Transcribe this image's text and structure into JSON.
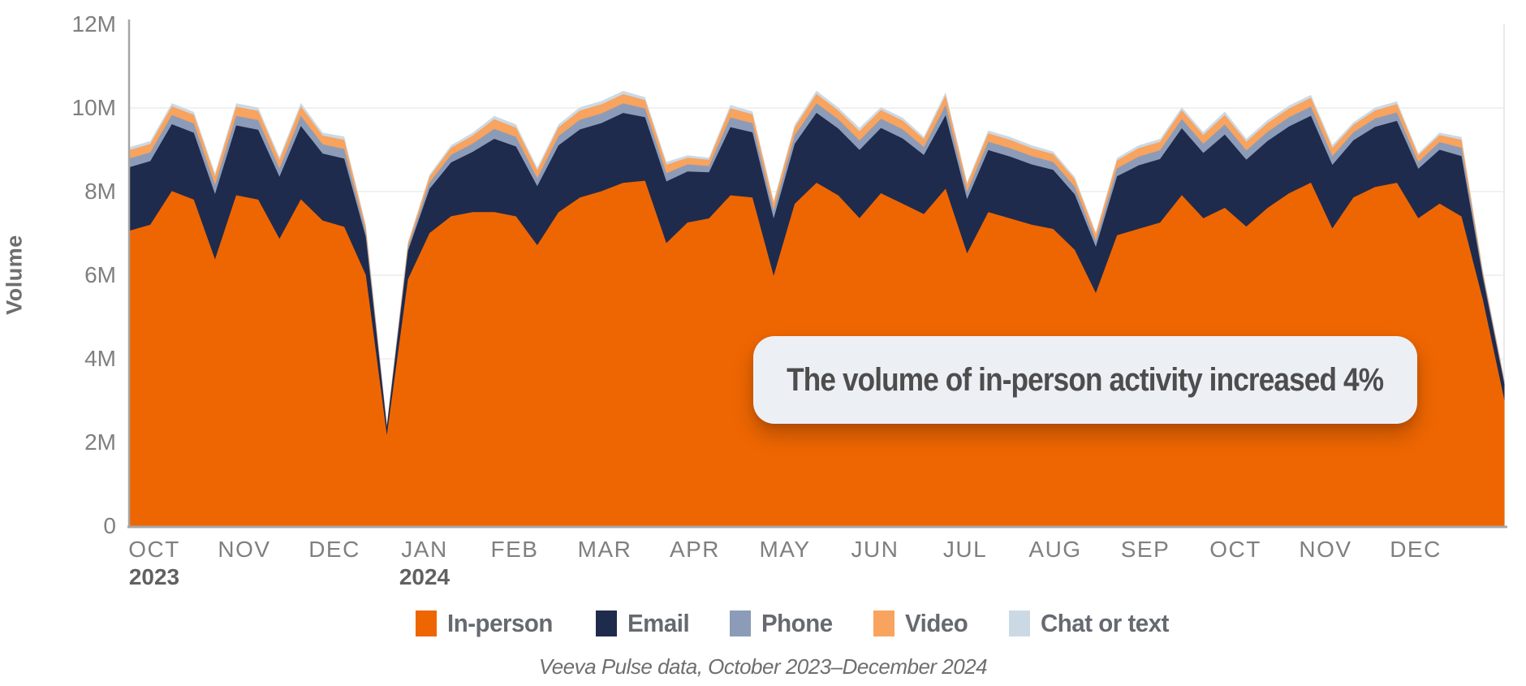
{
  "caption": "Veeva Pulse data, October 2023–December 2024",
  "annotation": {
    "text": "The volume of in-person activity increased 4%"
  },
  "chart_data": {
    "type": "area",
    "stacked": true,
    "ylabel": "Volume",
    "unit": "millions",
    "frequency": "weekly",
    "ylim": [
      0,
      12
    ],
    "grid": "horizontal",
    "legend_position": "bottom",
    "y_ticks": [
      {
        "value": 0,
        "label": "0"
      },
      {
        "value": 2,
        "label": "2M"
      },
      {
        "value": 4,
        "label": "4M"
      },
      {
        "value": 6,
        "label": "6M"
      },
      {
        "value": 8,
        "label": "8M"
      },
      {
        "value": 10,
        "label": "10M"
      },
      {
        "value": 12,
        "label": "12M"
      }
    ],
    "x_tick_labels": [
      {
        "month": "OCT",
        "year": "2023"
      },
      {
        "month": "NOV"
      },
      {
        "month": "DEC"
      },
      {
        "month": "JAN",
        "year": "2024"
      },
      {
        "month": "FEB"
      },
      {
        "month": "MAR"
      },
      {
        "month": "APR"
      },
      {
        "month": "MAY"
      },
      {
        "month": "JUN"
      },
      {
        "month": "JUL"
      },
      {
        "month": "AUG"
      },
      {
        "month": "SEP"
      },
      {
        "month": "OCT"
      },
      {
        "month": "NOV"
      },
      {
        "month": "DEC"
      }
    ],
    "series": [
      {
        "name": "In-person",
        "color": "#EE6602",
        "values": [
          7.05,
          7.2,
          8.0,
          7.8,
          6.35,
          7.9,
          7.8,
          6.85,
          7.8,
          7.3,
          7.15,
          6.0,
          2.1,
          5.9,
          7.0,
          7.4,
          7.5,
          7.5,
          7.4,
          6.7,
          7.5,
          7.85,
          8.0,
          8.2,
          8.25,
          6.75,
          7.25,
          7.35,
          7.9,
          7.85,
          5.95,
          7.7,
          8.2,
          7.9,
          7.35,
          7.95,
          7.7,
          7.45,
          8.05,
          6.5,
          7.5,
          7.35,
          7.2,
          7.1,
          6.6,
          5.55,
          6.95,
          7.1,
          7.25,
          7.9,
          7.35,
          7.6,
          7.15,
          7.6,
          7.95,
          8.2,
          7.1,
          7.85,
          8.1,
          8.2,
          7.35,
          7.7,
          7.4,
          5.4,
          3.0
        ]
      },
      {
        "name": "Email",
        "color": "#1F2B4D",
        "values": [
          1.52,
          1.52,
          1.6,
          1.6,
          1.56,
          1.67,
          1.67,
          1.48,
          1.75,
          1.6,
          1.63,
          0.91,
          0.19,
          0.68,
          1.06,
          1.29,
          1.44,
          1.75,
          1.67,
          1.41,
          1.6,
          1.63,
          1.63,
          1.67,
          1.52,
          1.48,
          1.22,
          1.1,
          1.63,
          1.56,
          1.37,
          1.44,
          1.67,
          1.6,
          1.63,
          1.56,
          1.56,
          1.41,
          1.75,
          1.29,
          1.48,
          1.48,
          1.44,
          1.41,
          1.33,
          1.1,
          1.41,
          1.52,
          1.52,
          1.6,
          1.56,
          1.75,
          1.6,
          1.6,
          1.6,
          1.6,
          1.52,
          1.37,
          1.44,
          1.48,
          1.18,
          1.29,
          1.44,
          0.53,
          0.38
        ]
      },
      {
        "name": "Phone",
        "color": "#8C9CB8",
        "values": [
          0.21,
          0.21,
          0.22,
          0.22,
          0.22,
          0.23,
          0.23,
          0.2,
          0.24,
          0.22,
          0.23,
          0.13,
          0.03,
          0.09,
          0.15,
          0.18,
          0.2,
          0.24,
          0.23,
          0.19,
          0.22,
          0.23,
          0.23,
          0.23,
          0.21,
          0.2,
          0.17,
          0.15,
          0.23,
          0.22,
          0.19,
          0.2,
          0.23,
          0.22,
          0.23,
          0.22,
          0.22,
          0.19,
          0.24,
          0.18,
          0.2,
          0.2,
          0.2,
          0.19,
          0.18,
          0.15,
          0.19,
          0.21,
          0.21,
          0.22,
          0.22,
          0.24,
          0.22,
          0.22,
          0.22,
          0.22,
          0.21,
          0.19,
          0.2,
          0.2,
          0.16,
          0.18,
          0.2,
          0.07,
          0.05
        ]
      },
      {
        "name": "Video",
        "color": "#F8A35E",
        "values": [
          0.2,
          0.2,
          0.21,
          0.21,
          0.21,
          0.22,
          0.22,
          0.2,
          0.23,
          0.21,
          0.22,
          0.12,
          0.03,
          0.09,
          0.14,
          0.17,
          0.19,
          0.23,
          0.22,
          0.19,
          0.21,
          0.22,
          0.22,
          0.22,
          0.2,
          0.2,
          0.16,
          0.15,
          0.22,
          0.21,
          0.18,
          0.19,
          0.22,
          0.21,
          0.22,
          0.21,
          0.21,
          0.19,
          0.23,
          0.17,
          0.2,
          0.2,
          0.19,
          0.19,
          0.18,
          0.15,
          0.19,
          0.2,
          0.2,
          0.21,
          0.21,
          0.23,
          0.21,
          0.21,
          0.21,
          0.21,
          0.2,
          0.18,
          0.19,
          0.2,
          0.16,
          0.17,
          0.19,
          0.07,
          0.05
        ]
      },
      {
        "name": "Chat or text",
        "color": "#CBD9E5",
        "values": [
          0.07,
          0.07,
          0.07,
          0.07,
          0.07,
          0.08,
          0.08,
          0.07,
          0.08,
          0.07,
          0.08,
          0.04,
          0.01,
          0.03,
          0.05,
          0.06,
          0.07,
          0.08,
          0.08,
          0.06,
          0.07,
          0.08,
          0.08,
          0.08,
          0.07,
          0.07,
          0.06,
          0.05,
          0.08,
          0.07,
          0.06,
          0.07,
          0.08,
          0.07,
          0.08,
          0.07,
          0.07,
          0.06,
          0.08,
          0.06,
          0.07,
          0.07,
          0.07,
          0.06,
          0.06,
          0.05,
          0.06,
          0.07,
          0.07,
          0.07,
          0.07,
          0.08,
          0.07,
          0.07,
          0.07,
          0.07,
          0.07,
          0.06,
          0.07,
          0.07,
          0.05,
          0.06,
          0.07,
          0.02,
          0.02
        ]
      }
    ]
  },
  "style": {
    "axis_color": "#a6a6a6",
    "grid_color": "#f0f1f2",
    "tick_label_color": "#7f7f7f",
    "year_label_color": "#616161",
    "right_border_color": "#e9e9e9"
  }
}
